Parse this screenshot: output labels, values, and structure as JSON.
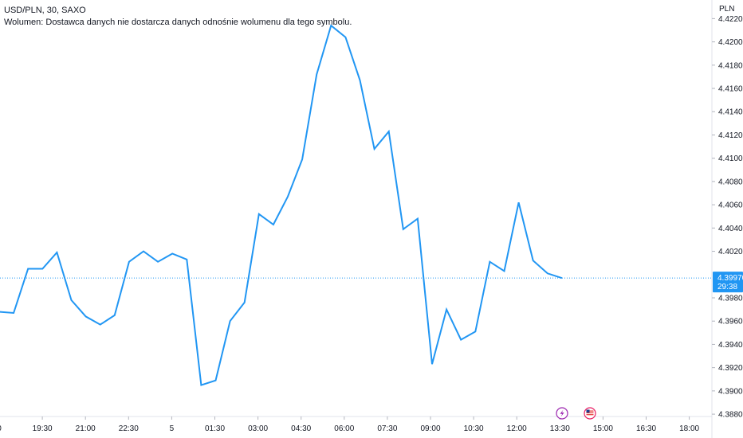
{
  "legend": {
    "symbol_line": "USD/PLN, 30, SAXO",
    "volume_line": "Wolumen: Dostawca danych nie dostarcza danych odnośnie wolumenu dla tego symbolu."
  },
  "chart_data": {
    "type": "line",
    "currency": "PLN",
    "series": [
      {
        "values": [
          4.3968,
          4.3967,
          4.4005,
          4.4005,
          4.4019,
          4.3978,
          4.3964,
          4.3957,
          4.3965,
          4.4011,
          4.402,
          4.4011,
          4.4018,
          4.4013,
          4.3905,
          4.3909,
          4.396,
          4.3976,
          4.4052,
          4.4043,
          4.4067,
          4.4099,
          4.4172,
          4.4214,
          4.4204,
          4.4167,
          4.4108,
          4.4123,
          4.4039,
          4.4048,
          4.3923,
          4.397,
          4.3944,
          4.3951,
          4.4011,
          4.4003,
          4.4062,
          4.4012,
          4.4001,
          4.3997
        ]
      }
    ],
    "x_ticks": [
      "0",
      "19:30",
      "21:00",
      "22:30",
      "5",
      "01:30",
      "03:00",
      "04:30",
      "06:00",
      "07:30",
      "09:00",
      "10:30",
      "12:00",
      "13:30",
      "15:00",
      "16:30",
      "18:00"
    ],
    "y_ticks": [
      "4.42200",
      "4.42000",
      "4.41800",
      "4.41600",
      "4.41400",
      "4.41200",
      "4.41000",
      "4.40800",
      "4.40600",
      "4.40400",
      "4.40200",
      "4.39970",
      "4.39800",
      "4.39600",
      "4.39400",
      "4.39200",
      "4.39000",
      "4.38800"
    ],
    "ylim": [
      4.3878,
      4.4236
    ],
    "last_price": "4.39970",
    "countdown": "29:38",
    "colors": {
      "line": "#2196f3",
      "price_tag": "#2196f3",
      "event_lightning": "#9c27b0",
      "event_flag": "#e91e63"
    },
    "events": [
      "lightning-icon",
      "us-flag-icon"
    ]
  }
}
